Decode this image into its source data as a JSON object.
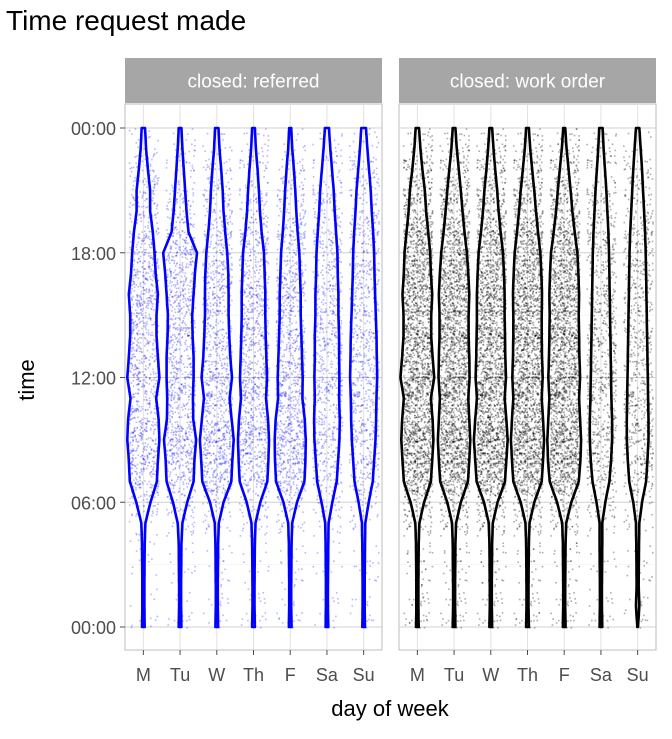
{
  "chart_data": {
    "type": "violin",
    "title": "Time request made",
    "xlabel": "day of week",
    "ylabel": "time",
    "categories": [
      "M",
      "Tu",
      "W",
      "Th",
      "F",
      "Sa",
      "Su"
    ],
    "y_ticks": [
      {
        "value": 0,
        "label": "00:00"
      },
      {
        "value": 6,
        "label": "06:00"
      },
      {
        "value": 12,
        "label": "12:00"
      },
      {
        "value": 18,
        "label": "18:00"
      },
      {
        "value": 24,
        "label": "00:00"
      }
    ],
    "ylim": [
      0,
      24
    ],
    "grid": true,
    "panels": [
      {
        "label": "closed: referred",
        "color": "#0000ff",
        "density": [
          {
            "profile": [
              0.08,
              0.06,
              0.06,
              0.07,
              0.08,
              0.12,
              0.42,
              0.8,
              0.86,
              0.95,
              0.9,
              0.76,
              0.95,
              0.86,
              0.78,
              0.78,
              0.86,
              0.73,
              0.66,
              0.56,
              0.4,
              0.4,
              0.27,
              0.16,
              0.1
            ],
            "count": 1200
          },
          {
            "profile": [
              0.08,
              0.06,
              0.06,
              0.07,
              0.08,
              0.14,
              0.42,
              0.8,
              0.85,
              0.95,
              0.78,
              0.76,
              0.8,
              0.8,
              0.74,
              0.72,
              0.8,
              0.88,
              1.0,
              0.5,
              0.38,
              0.3,
              0.22,
              0.14,
              0.08
            ],
            "count": 1200
          },
          {
            "profile": [
              0.08,
              0.06,
              0.06,
              0.07,
              0.08,
              0.12,
              0.4,
              0.86,
              0.92,
              1.0,
              0.88,
              0.76,
              0.9,
              0.8,
              0.74,
              0.7,
              0.7,
              0.68,
              0.62,
              0.5,
              0.4,
              0.35,
              0.26,
              0.16,
              0.1
            ],
            "count": 1200
          },
          {
            "profile": [
              0.08,
              0.06,
              0.06,
              0.07,
              0.08,
              0.12,
              0.4,
              0.82,
              0.88,
              0.92,
              0.86,
              0.74,
              0.8,
              0.76,
              0.72,
              0.7,
              0.7,
              0.66,
              0.62,
              0.48,
              0.38,
              0.32,
              0.24,
              0.14,
              0.08
            ],
            "count": 1200
          },
          {
            "profile": [
              0.08,
              0.06,
              0.06,
              0.07,
              0.08,
              0.12,
              0.4,
              0.84,
              0.9,
              0.92,
              0.86,
              0.72,
              0.74,
              0.7,
              0.66,
              0.62,
              0.62,
              0.58,
              0.54,
              0.44,
              0.36,
              0.3,
              0.22,
              0.12,
              0.06
            ],
            "count": 1200
          },
          {
            "profile": [
              0.08,
              0.06,
              0.06,
              0.07,
              0.08,
              0.1,
              0.32,
              0.58,
              0.66,
              0.74,
              0.76,
              0.72,
              0.74,
              0.72,
              0.72,
              0.68,
              0.68,
              0.64,
              0.62,
              0.54,
              0.46,
              0.4,
              0.3,
              0.2,
              0.12
            ],
            "count": 900
          },
          {
            "profile": [
              0.08,
              0.06,
              0.06,
              0.07,
              0.08,
              0.1,
              0.3,
              0.54,
              0.62,
              0.7,
              0.74,
              0.76,
              0.8,
              0.78,
              0.76,
              0.72,
              0.68,
              0.64,
              0.62,
              0.56,
              0.48,
              0.42,
              0.32,
              0.22,
              0.14
            ],
            "count": 900
          }
        ]
      },
      {
        "label": "closed: work order",
        "color": "#000000",
        "density": [
          {
            "profile": [
              0.08,
              0.06,
              0.06,
              0.07,
              0.08,
              0.12,
              0.4,
              0.8,
              0.88,
              0.95,
              0.9,
              0.8,
              1.0,
              0.9,
              0.82,
              0.82,
              0.88,
              0.8,
              0.76,
              0.64,
              0.52,
              0.44,
              0.3,
              0.18,
              0.1
            ],
            "count": 2400
          },
          {
            "profile": [
              0.08,
              0.06,
              0.06,
              0.07,
              0.08,
              0.12,
              0.4,
              0.82,
              0.9,
              0.96,
              0.9,
              0.84,
              0.92,
              0.9,
              0.86,
              0.86,
              0.9,
              0.84,
              0.76,
              0.62,
              0.5,
              0.4,
              0.28,
              0.16,
              0.08
            ],
            "count": 2400
          },
          {
            "profile": [
              0.08,
              0.06,
              0.06,
              0.07,
              0.08,
              0.12,
              0.4,
              0.84,
              0.92,
              1.0,
              0.92,
              0.82,
              0.9,
              0.86,
              0.84,
              0.82,
              0.82,
              0.78,
              0.72,
              0.58,
              0.46,
              0.38,
              0.26,
              0.16,
              0.08
            ],
            "count": 2400
          },
          {
            "profile": [
              0.08,
              0.06,
              0.06,
              0.07,
              0.08,
              0.12,
              0.4,
              0.84,
              0.92,
              0.98,
              0.92,
              0.84,
              0.9,
              0.86,
              0.84,
              0.84,
              0.86,
              0.82,
              0.76,
              0.62,
              0.5,
              0.4,
              0.28,
              0.16,
              0.08
            ],
            "count": 2400
          },
          {
            "profile": [
              0.08,
              0.06,
              0.06,
              0.07,
              0.08,
              0.12,
              0.42,
              0.86,
              0.96,
              1.0,
              0.94,
              0.88,
              0.94,
              0.9,
              0.88,
              0.86,
              0.88,
              0.84,
              0.78,
              0.62,
              0.48,
              0.38,
              0.26,
              0.14,
              0.06
            ],
            "count": 2400
          },
          {
            "profile": [
              0.08,
              0.06,
              0.06,
              0.07,
              0.08,
              0.08,
              0.26,
              0.5,
              0.6,
              0.66,
              0.66,
              0.62,
              0.6,
              0.58,
              0.56,
              0.54,
              0.52,
              0.5,
              0.48,
              0.44,
              0.38,
              0.32,
              0.24,
              0.16,
              0.1
            ],
            "count": 900
          },
          {
            "profile": [
              0.02,
              0.1,
              0.06,
              0.07,
              0.08,
              0.1,
              0.26,
              0.5,
              0.58,
              0.64,
              0.64,
              0.62,
              0.6,
              0.58,
              0.56,
              0.54,
              0.52,
              0.5,
              0.48,
              0.44,
              0.38,
              0.32,
              0.26,
              0.18,
              0.1
            ],
            "count": 800
          }
        ]
      }
    ]
  }
}
